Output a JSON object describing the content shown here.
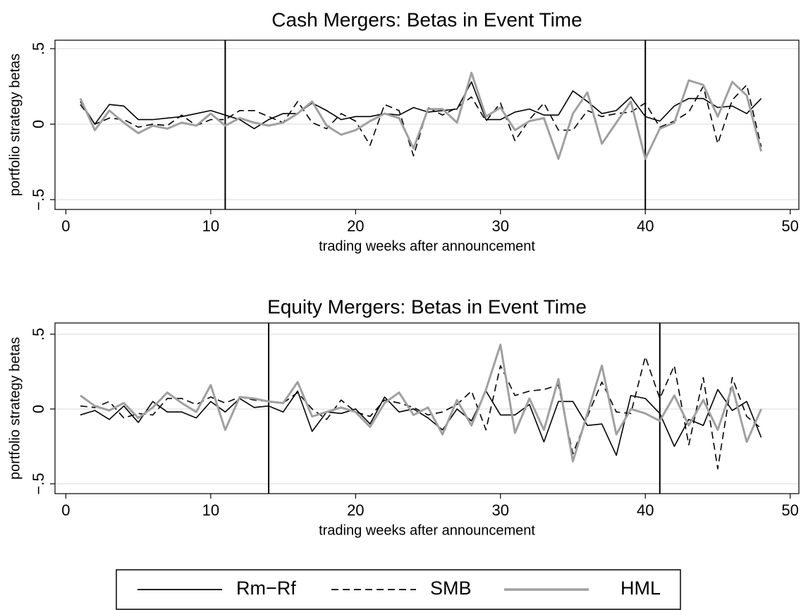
{
  "chart_data": [
    {
      "type": "line",
      "title": "Cash Mergers: Betas in Event Time",
      "xlabel": "trading weeks after announcement",
      "ylabel": "portfolio strategy betas",
      "x": [
        1,
        2,
        3,
        4,
        5,
        6,
        7,
        8,
        9,
        10,
        11,
        12,
        13,
        14,
        15,
        16,
        17,
        18,
        19,
        20,
        21,
        22,
        23,
        24,
        25,
        26,
        27,
        28,
        29,
        30,
        31,
        32,
        33,
        34,
        35,
        36,
        37,
        38,
        39,
        40,
        41,
        42,
        43,
        44,
        45,
        46,
        47,
        48
      ],
      "series": [
        {
          "name": "Rm−Rf",
          "color": "#000000",
          "linestyle": "solid",
          "values": [
            0.15,
            0.0,
            0.13,
            0.12,
            0.03,
            0.03,
            0.04,
            0.05,
            0.07,
            0.09,
            0.06,
            0.03,
            -0.03,
            0.03,
            0.07,
            0.07,
            0.14,
            0.09,
            0.03,
            0.05,
            0.05,
            0.07,
            0.06,
            0.11,
            0.08,
            0.09,
            0.1,
            0.28,
            0.03,
            0.03,
            0.08,
            0.1,
            0.06,
            0.06,
            0.22,
            0.15,
            0.07,
            0.09,
            0.18,
            0.05,
            0.02,
            0.12,
            0.17,
            0.17,
            0.11,
            0.12,
            0.07,
            0.17
          ]
        },
        {
          "name": "SMB",
          "color": "#000000",
          "linestyle": "dashed",
          "values": [
            0.13,
            0.0,
            0.04,
            0.03,
            -0.02,
            0.0,
            -0.01,
            0.06,
            -0.01,
            0.03,
            0.03,
            0.09,
            0.09,
            0.05,
            0.01,
            0.15,
            0.01,
            -0.03,
            0.07,
            0.02,
            -0.14,
            0.13,
            0.09,
            -0.21,
            0.11,
            0.06,
            0.11,
            0.18,
            0.02,
            0.14,
            -0.11,
            0.03,
            0.14,
            -0.04,
            -0.04,
            0.09,
            0.05,
            0.07,
            0.08,
            0.14,
            -0.02,
            0.02,
            0.08,
            0.25,
            -0.13,
            0.16,
            0.26,
            -0.15
          ]
        },
        {
          "name": "HML",
          "color": "#a0a0a0",
          "linestyle": "solid",
          "values": [
            0.17,
            -0.04,
            0.09,
            0.01,
            -0.06,
            -0.01,
            -0.03,
            0.01,
            -0.01,
            0.07,
            -0.01,
            0.04,
            0.01,
            -0.01,
            0.01,
            0.07,
            0.15,
            -0.01,
            -0.07,
            -0.04,
            0.02,
            0.07,
            0.04,
            -0.16,
            0.1,
            0.1,
            0.01,
            0.34,
            0.05,
            0.11,
            -0.04,
            0.02,
            0.04,
            -0.23,
            0.07,
            0.21,
            -0.13,
            0.01,
            0.15,
            -0.23,
            -0.03,
            0.01,
            0.29,
            0.26,
            0.05,
            0.28,
            0.19,
            -0.18
          ]
        }
      ],
      "xlim": [
        -0.75,
        50.6
      ],
      "ylim": [
        -0.565,
        0.556
      ],
      "xticks": [
        0,
        10,
        20,
        30,
        40,
        50
      ],
      "yticks": [
        {
          "value": -0.5,
          "label": "−.5"
        },
        0,
        {
          "value": 0.5,
          "label": ".5"
        }
      ],
      "grid": true,
      "vlines": [
        11,
        40
      ],
      "legend": "bottom"
    },
    {
      "type": "line",
      "title": "Equity Mergers: Betas in Event Time",
      "xlabel": "trading weeks after announcement",
      "ylabel": "portfolio strategy betas",
      "x": [
        1,
        2,
        3,
        4,
        5,
        6,
        7,
        8,
        9,
        10,
        11,
        12,
        13,
        14,
        15,
        16,
        17,
        18,
        19,
        20,
        21,
        22,
        23,
        24,
        25,
        26,
        27,
        28,
        29,
        30,
        31,
        32,
        33,
        34,
        35,
        36,
        37,
        38,
        39,
        40,
        41,
        42,
        43,
        44,
        45,
        46,
        47,
        48
      ],
      "series": [
        {
          "name": "Rm−Rf",
          "color": "#000000",
          "linestyle": "solid",
          "values": [
            -0.04,
            -0.01,
            -0.07,
            0.02,
            -0.09,
            0.05,
            -0.02,
            -0.02,
            -0.06,
            0.05,
            -0.02,
            0.07,
            0.01,
            0.02,
            -0.02,
            0.12,
            -0.15,
            -0.02,
            -0.03,
            0.0,
            -0.1,
            0.08,
            -0.02,
            0.0,
            -0.06,
            -0.14,
            0.0,
            -0.08,
            0.12,
            -0.04,
            -0.04,
            0.03,
            -0.22,
            0.05,
            0.05,
            -0.11,
            -0.1,
            -0.31,
            0.09,
            0.07,
            -0.03,
            -0.25,
            -0.07,
            -0.11,
            0.13,
            -0.01,
            0.05,
            -0.19
          ]
        },
        {
          "name": "SMB",
          "color": "#000000",
          "linestyle": "dashed",
          "values": [
            0.02,
            0.01,
            0.05,
            -0.06,
            -0.03,
            -0.04,
            0.07,
            0.07,
            0.03,
            0.08,
            0.04,
            0.08,
            0.06,
            0.05,
            0.04,
            0.11,
            0.0,
            -0.07,
            0.06,
            -0.02,
            -0.05,
            0.06,
            0.04,
            0.01,
            -0.04,
            -0.02,
            0.03,
            0.12,
            -0.14,
            0.29,
            0.09,
            0.12,
            0.13,
            0.16,
            -0.3,
            -0.05,
            0.18,
            -0.02,
            -0.03,
            0.35,
            0.07,
            0.29,
            -0.24,
            0.21,
            -0.4,
            0.21,
            -0.05,
            -0.13
          ]
        },
        {
          "name": "HML",
          "color": "#a0a0a0",
          "linestyle": "solid",
          "values": [
            0.09,
            0.02,
            -0.01,
            0.04,
            -0.06,
            0.01,
            0.11,
            0.04,
            -0.02,
            0.16,
            -0.14,
            0.08,
            0.07,
            0.05,
            0.04,
            0.18,
            -0.05,
            -0.02,
            0.01,
            -0.02,
            -0.12,
            0.04,
            0.11,
            -0.04,
            0.01,
            -0.17,
            0.06,
            -0.11,
            0.13,
            0.43,
            -0.16,
            0.07,
            -0.14,
            0.2,
            -0.35,
            -0.03,
            0.29,
            -0.17,
            0.0,
            -0.03,
            -0.08,
            0.09,
            -0.11,
            0.06,
            -0.14,
            0.15,
            -0.22,
            0.0
          ]
        }
      ],
      "xlim": [
        -0.75,
        50.6
      ],
      "ylim": [
        -0.566,
        0.575
      ],
      "xticks": [
        0,
        10,
        20,
        30,
        40,
        50
      ],
      "yticks": [
        {
          "value": -0.5,
          "label": "−.5"
        },
        0,
        {
          "value": 0.5,
          "label": ".5"
        }
      ],
      "grid": true,
      "vlines": [
        14,
        41
      ]
    }
  ]
}
